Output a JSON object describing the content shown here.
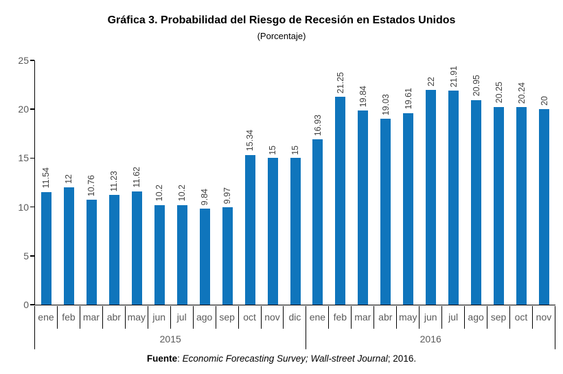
{
  "header": {
    "title": "Gráfica 3. Probabilidad del Riesgo de Recesión en Estados Unidos",
    "subtitle": "(Porcentaje)"
  },
  "footer": {
    "label": "Fuente",
    "separator": ": ",
    "source_italic": "Economic Forecasting Survey; Wall-street Journal",
    "suffix": "; 2016."
  },
  "chart_data": {
    "type": "bar",
    "title": "Gráfica 3. Probabilidad del Riesgo de Recesión en Estados Unidos",
    "subtitle": "(Porcentaje)",
    "xlabel": "",
    "ylabel": "",
    "ylim": [
      0,
      25
    ],
    "yticks": [
      0,
      5,
      10,
      15,
      20,
      25
    ],
    "grid": false,
    "legend": "none",
    "value_label_rotation_deg": 90,
    "bar_color": "#0F75BC",
    "value_label_color": "#404040",
    "axis_text_color": "#595959",
    "groups": [
      {
        "year": "2015",
        "categories": [
          "ene",
          "feb",
          "mar",
          "abr",
          "may",
          "jun",
          "jul",
          "ago",
          "sep",
          "oct",
          "nov",
          "dic"
        ],
        "values": [
          11.54,
          12,
          10.76,
          11.23,
          11.62,
          10.2,
          10.2,
          9.84,
          9.97,
          15.34,
          15,
          15
        ]
      },
      {
        "year": "2016",
        "categories": [
          "ene",
          "feb",
          "mar",
          "abr",
          "may",
          "jun",
          "jul",
          "ago",
          "sep",
          "oct",
          "nov"
        ],
        "values": [
          16.93,
          21.25,
          19.84,
          19.03,
          19.61,
          22,
          21.91,
          20.95,
          20.25,
          20.24,
          20
        ]
      }
    ],
    "source": "Fuente: Economic Forecasting Survey; Wall-street Journal; 2016."
  }
}
